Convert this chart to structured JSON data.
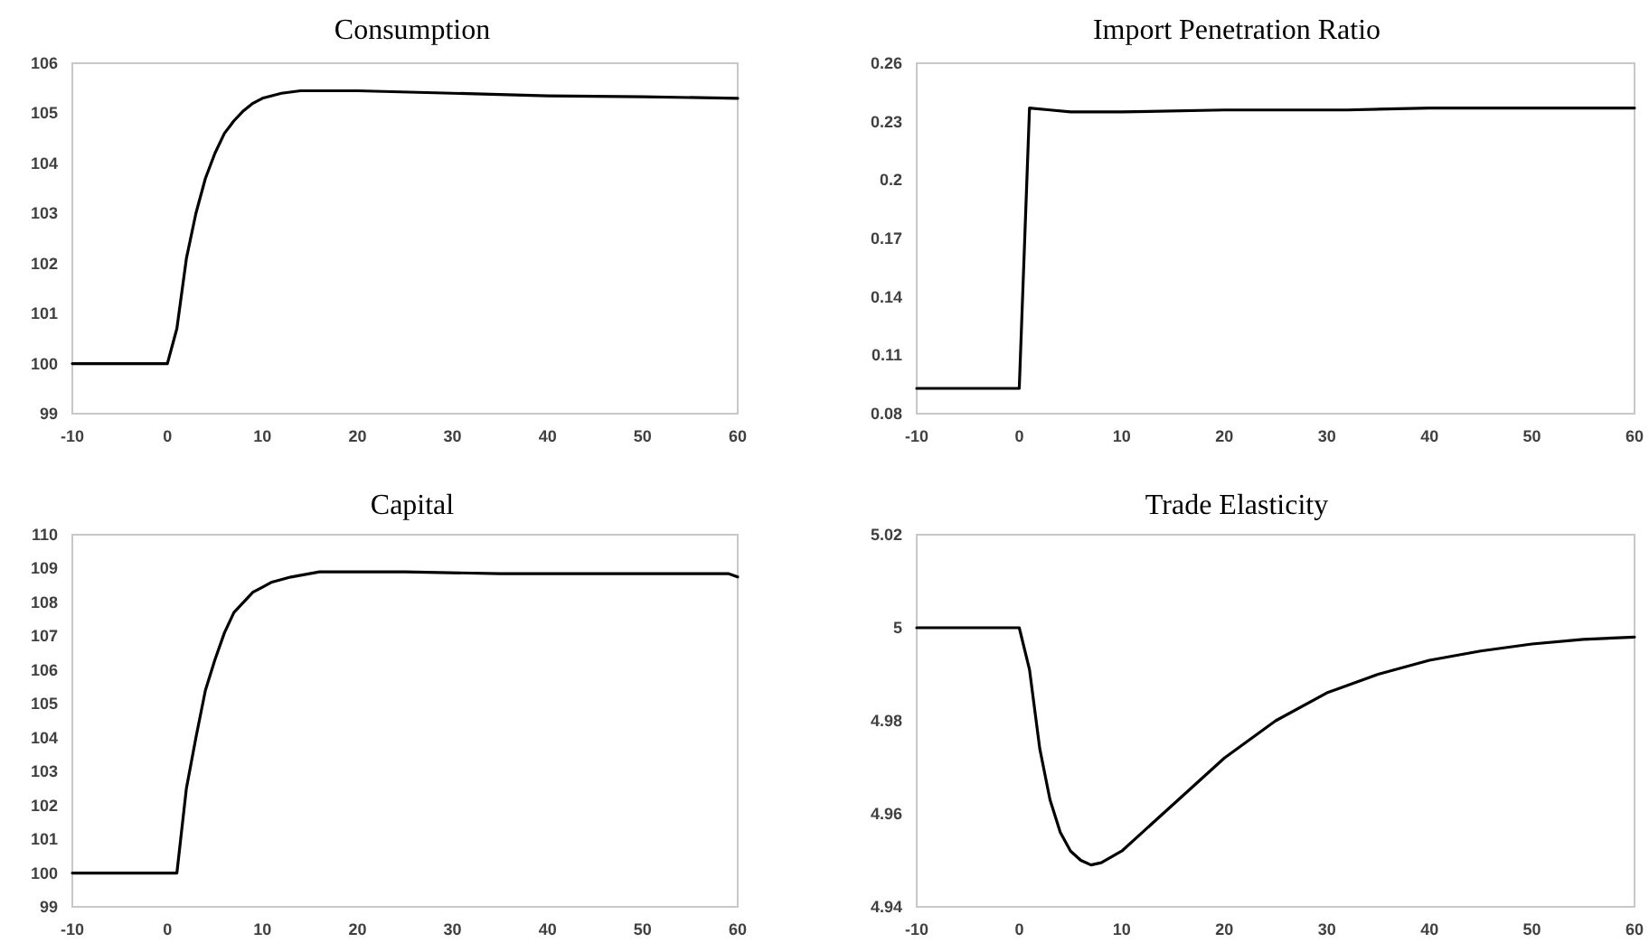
{
  "chart_data": [
    {
      "type": "line",
      "title": "Consumption",
      "xlim": [
        -10,
        60
      ],
      "xticks": [
        -10,
        0,
        10,
        20,
        30,
        40,
        50,
        60
      ],
      "ylim": [
        99,
        106
      ],
      "yticks": [
        99,
        100,
        101,
        102,
        103,
        104,
        105,
        106
      ],
      "grid": false,
      "marker": "none",
      "line_style": "solid",
      "series": [
        {
          "color": "#000000",
          "x": [
            -10,
            0,
            1,
            2,
            3,
            4,
            5,
            6,
            7,
            8,
            9,
            10,
            12,
            14,
            20,
            30,
            40,
            50,
            60
          ],
          "values": [
            100,
            100,
            100.7,
            102.1,
            103,
            103.7,
            104.2,
            104.6,
            104.85,
            105.05,
            105.2,
            105.3,
            105.4,
            105.45,
            105.45,
            105.4,
            105.35,
            105.33,
            105.3
          ]
        }
      ]
    },
    {
      "type": "line",
      "title": "Import Penetration Ratio",
      "xlim": [
        -10,
        60
      ],
      "xticks": [
        -10,
        0,
        10,
        20,
        30,
        40,
        50,
        60
      ],
      "ylim": [
        0.08,
        0.26
      ],
      "yticks": [
        0.08,
        0.11,
        0.14,
        0.17,
        0.2,
        0.23,
        0.26
      ],
      "grid": false,
      "marker": "none",
      "line_style": "solid",
      "series": [
        {
          "color": "#000000",
          "x": [
            -10,
            0,
            1,
            3,
            5,
            10,
            20,
            32,
            40,
            60
          ],
          "values": [
            0.093,
            0.093,
            0.237,
            0.236,
            0.235,
            0.235,
            0.236,
            0.236,
            0.237,
            0.237
          ]
        }
      ]
    },
    {
      "type": "line",
      "title": "Capital",
      "xlim": [
        -10,
        60
      ],
      "xticks": [
        -10,
        0,
        10,
        20,
        30,
        40,
        50,
        60
      ],
      "ylim": [
        99,
        110
      ],
      "yticks": [
        99,
        100,
        101,
        102,
        103,
        104,
        105,
        106,
        107,
        108,
        109,
        110
      ],
      "grid": false,
      "marker": "none",
      "line_style": "solid",
      "series": [
        {
          "color": "#000000",
          "x": [
            -10,
            1,
            2,
            3,
            4,
            5,
            6,
            7,
            8,
            9,
            10,
            11,
            13,
            16,
            25,
            35,
            59,
            60
          ],
          "values": [
            100,
            100,
            102.5,
            104,
            105.4,
            106.3,
            107.1,
            107.7,
            108,
            108.3,
            108.45,
            108.6,
            108.75,
            108.9,
            108.9,
            108.85,
            108.85,
            108.75
          ]
        }
      ]
    },
    {
      "type": "line",
      "title": "Trade Elasticity",
      "xlim": [
        -10,
        60
      ],
      "xticks": [
        -10,
        0,
        10,
        20,
        30,
        40,
        50,
        60
      ],
      "ylim": [
        4.94,
        5.02
      ],
      "yticks": [
        4.94,
        4.96,
        4.98,
        5,
        5.02
      ],
      "grid": false,
      "marker": "none",
      "line_style": "solid",
      "series": [
        {
          "color": "#000000",
          "x": [
            -10,
            0,
            1,
            2,
            3,
            4,
            5,
            6,
            7,
            8,
            10,
            12,
            15,
            20,
            25,
            30,
            35,
            40,
            45,
            50,
            55,
            60
          ],
          "values": [
            5,
            5,
            4.991,
            4.974,
            4.963,
            4.956,
            4.952,
            4.95,
            4.949,
            4.9495,
            4.952,
            4.956,
            4.962,
            4.972,
            4.98,
            4.986,
            4.99,
            4.993,
            4.995,
            4.9965,
            4.9975,
            4.998
          ]
        }
      ]
    }
  ]
}
